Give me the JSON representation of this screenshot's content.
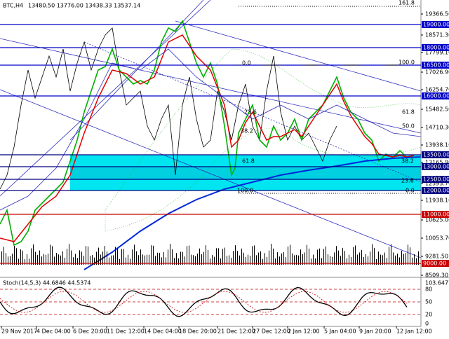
{
  "header": {
    "symbol": "BTC,H4",
    "ohlc": "13480.50 13776.00 13438.33 13537.14"
  },
  "price_labels": [
    "19366.50",
    "18571.30",
    "17799.10",
    "17026.90",
    "16254.70",
    "15482.50",
    "14710.30",
    "13938.10",
    "13165.90",
    "12393.70",
    "11938.10",
    "10625.00",
    "10053.70",
    "9281.50",
    "8509.30"
  ],
  "levels": [
    {
      "text": "19000.00",
      "color": "#0000c8"
    },
    {
      "text": "18000.00",
      "color": "#0000c8"
    },
    {
      "text": "16500.00",
      "color": "#0000c8"
    },
    {
      "text": "16000.00",
      "color": "#0000c8"
    },
    {
      "text": "13500.00",
      "color": "#000080"
    },
    {
      "text": "13000.00",
      "color": "#000080"
    },
    {
      "text": "12500.00",
      "color": "#000080"
    },
    {
      "text": "12000.00",
      "color": "#000080"
    },
    {
      "text": "11000.00",
      "color": "#c80000"
    },
    {
      "text": "9000.00",
      "color": "#c80000"
    }
  ],
  "fib_labels": [
    "161.8",
    "100.0",
    "0.0",
    "61.8",
    "50.0",
    "38.2",
    "23.6",
    "38.2",
    "61.8",
    "23.6",
    "100.0",
    "0.0"
  ],
  "stoch": {
    "title": "Stoch(14,5,3) 44.6846 44.5374",
    "axis_labels": [
      "103.6477",
      "80",
      "50",
      "20",
      "0"
    ]
  },
  "time_labels": [
    "29 Nov 2017",
    "4 Dec 04:00",
    "6 Dec 20:00",
    "11 Dec 12:00",
    "14 Dec 04:00",
    "18 Dec 20:00",
    "21 Dec 12:00",
    "27 Dec 12:00",
    "2 Jan 12:00",
    "5 Jan 04:00",
    "9 Jan 20:00",
    "12 Jan 12:00"
  ]
}
